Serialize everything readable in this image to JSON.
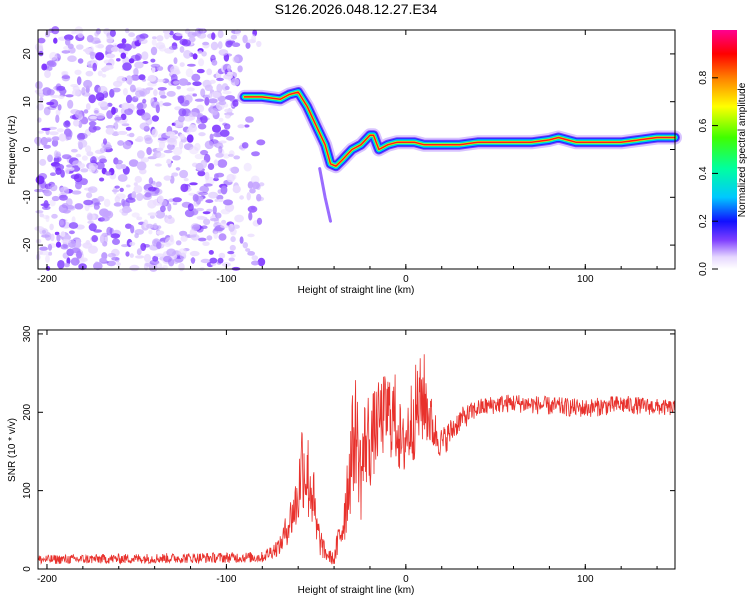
{
  "title": "S126.2026.048.12.27.E34",
  "chart_data": [
    {
      "type": "heatmap",
      "name": "spectrogram",
      "xlabel": "Height of straight line (km)",
      "ylabel": "Frequency (Hz)",
      "xlim": [
        -205,
        150
      ],
      "ylim": [
        -25,
        25
      ],
      "xticks": [
        -200,
        -100,
        0,
        100
      ],
      "yticks": [
        -20,
        -10,
        0,
        10,
        20
      ],
      "noise_region": {
        "x_from": -205,
        "x_to": -80
      },
      "ridge": {
        "x": [
          -90,
          -80,
          -70,
          -65,
          -60,
          -55,
          -50,
          -45,
          -42,
          -39,
          -35,
          -30,
          -25,
          -20,
          -18,
          -15,
          -10,
          -5,
          0,
          5,
          10,
          20,
          30,
          40,
          50,
          60,
          70,
          80,
          85,
          90,
          95,
          100,
          110,
          120,
          130,
          140,
          150
        ],
        "y": [
          11,
          11,
          10.5,
          11.5,
          12,
          9,
          5,
          1,
          -3,
          -3.5,
          -2,
          0,
          1,
          3,
          3,
          0,
          1,
          1.5,
          1.5,
          1.5,
          1,
          1,
          1,
          1.5,
          1.5,
          1.5,
          1.5,
          2,
          2.5,
          2,
          1.5,
          1.5,
          1.5,
          1.5,
          2,
          2.5,
          2.5
        ]
      },
      "colorbar": {
        "label": "Normalized spectral amplitude",
        "min": 0,
        "max": 1,
        "ticks": [
          "0.0",
          "0.2",
          "0.4",
          "0.6",
          "0.8"
        ]
      }
    },
    {
      "type": "line",
      "name": "snr",
      "xlabel": "Height of straight line (km)",
      "ylabel": "SNR (10 * v/v)",
      "xlim": [
        -205,
        150
      ],
      "ylim": [
        0,
        305
      ],
      "xticks": [
        -200,
        -100,
        0,
        100
      ],
      "yticks": [
        0,
        100,
        200,
        300
      ],
      "color": "#e8312c",
      "envelope": {
        "x": [
          -205,
          -80,
          -70,
          -60,
          -58,
          -55,
          -52,
          -50,
          -45,
          -40,
          -35,
          -30,
          -28,
          -25,
          -22,
          -20,
          -15,
          -10,
          -5,
          -2,
          0,
          5,
          10,
          15,
          20,
          30,
          40,
          50,
          60,
          80,
          100,
          120,
          150
        ],
        "mean": [
          12,
          15,
          30,
          90,
          140,
          120,
          100,
          50,
          20,
          12,
          60,
          150,
          180,
          120,
          170,
          160,
          190,
          200,
          190,
          150,
          170,
          200,
          220,
          180,
          160,
          190,
          205,
          210,
          212,
          208,
          205,
          210,
          205
        ],
        "spread": [
          6,
          7,
          12,
          40,
          60,
          60,
          55,
          30,
          10,
          8,
          40,
          70,
          70,
          60,
          70,
          60,
          50,
          55,
          60,
          40,
          50,
          60,
          60,
          30,
          20,
          15,
          12,
          12,
          12,
          12,
          12,
          12,
          10
        ]
      }
    }
  ]
}
